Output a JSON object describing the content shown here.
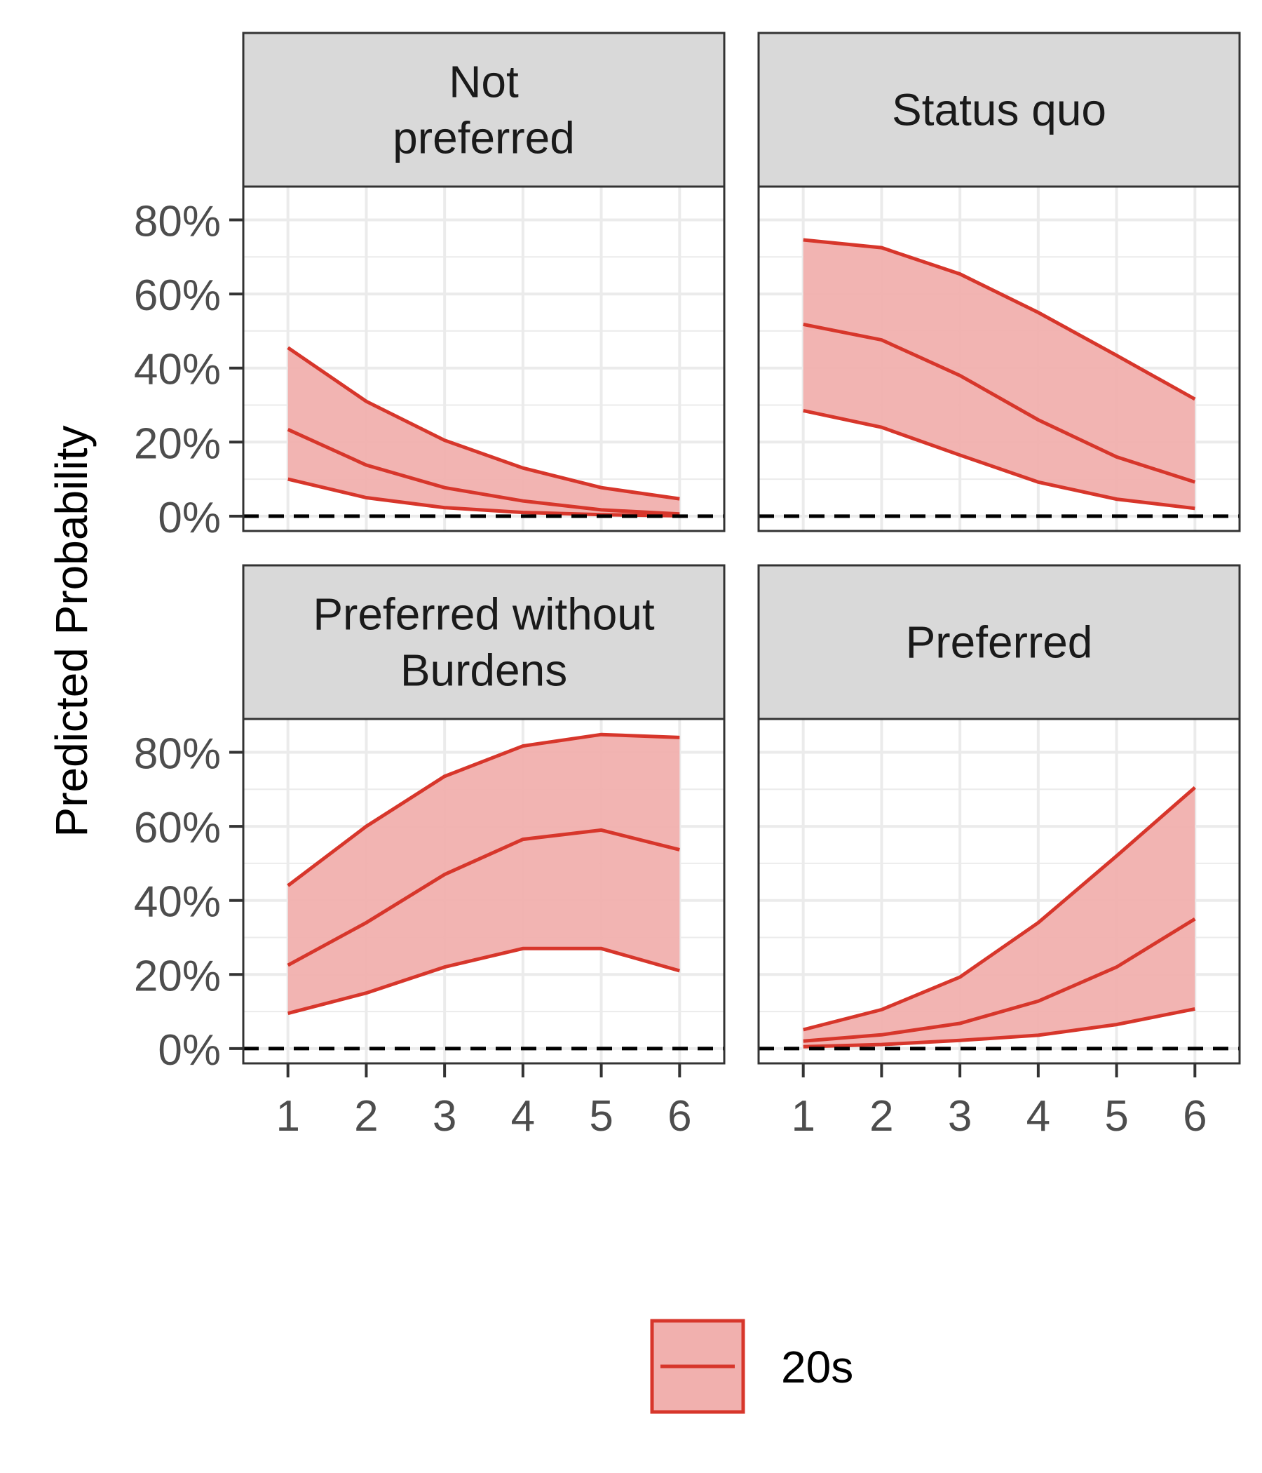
{
  "chart_data": {
    "type": "area",
    "ylabel": "Predicted Probability",
    "x": [
      1,
      2,
      3,
      4,
      5,
      6
    ],
    "xticks": [
      "1",
      "2",
      "3",
      "4",
      "5",
      "6"
    ],
    "yticks": [
      "0%",
      "20%",
      "40%",
      "60%",
      "80%"
    ],
    "ylim": [
      -0.04,
      0.89
    ],
    "reference_line": {
      "y": 0,
      "style": "dashed"
    },
    "colors": {
      "line": "#d7362b",
      "ribbon": "#f1b0ae",
      "strip": "#d9d9d9",
      "grid": "#ebebeb"
    },
    "grid": true,
    "legend": {
      "position": "bottom",
      "entries": [
        "20s"
      ]
    },
    "panels": [
      {
        "title_lines": [
          "Not",
          "preferred"
        ],
        "series": [
          {
            "name": "20s",
            "estimate": [
              0.234,
              0.138,
              0.077,
              0.041,
              0.017,
              0.006
            ],
            "lower": [
              0.1,
              0.05,
              0.023,
              0.01,
              0.004,
              0.001
            ],
            "upper": [
              0.455,
              0.31,
              0.205,
              0.13,
              0.077,
              0.047
            ]
          }
        ]
      },
      {
        "title_lines": [
          "Status quo"
        ],
        "series": [
          {
            "name": "20s",
            "estimate": [
              0.518,
              0.476,
              0.38,
              0.26,
              0.16,
              0.092
            ],
            "lower": [
              0.285,
              0.24,
              0.165,
              0.092,
              0.046,
              0.021
            ],
            "upper": [
              0.746,
              0.725,
              0.654,
              0.55,
              0.434,
              0.316
            ]
          }
        ]
      },
      {
        "title_lines": [
          "Preferred without",
          "Burdens"
        ],
        "series": [
          {
            "name": "20s",
            "estimate": [
              0.225,
              0.34,
              0.47,
              0.565,
              0.59,
              0.537
            ],
            "lower": [
              0.095,
              0.15,
              0.22,
              0.27,
              0.27,
              0.21
            ],
            "upper": [
              0.44,
              0.6,
              0.735,
              0.817,
              0.848,
              0.84
            ]
          }
        ]
      },
      {
        "title_lines": [
          "Preferred"
        ],
        "series": [
          {
            "name": "20s",
            "estimate": [
              0.02,
              0.037,
              0.068,
              0.128,
              0.22,
              0.35
            ],
            "lower": [
              0.005,
              0.011,
              0.022,
              0.036,
              0.065,
              0.107
            ],
            "upper": [
              0.051,
              0.105,
              0.193,
              0.34,
              0.52,
              0.705
            ]
          }
        ]
      }
    ]
  }
}
